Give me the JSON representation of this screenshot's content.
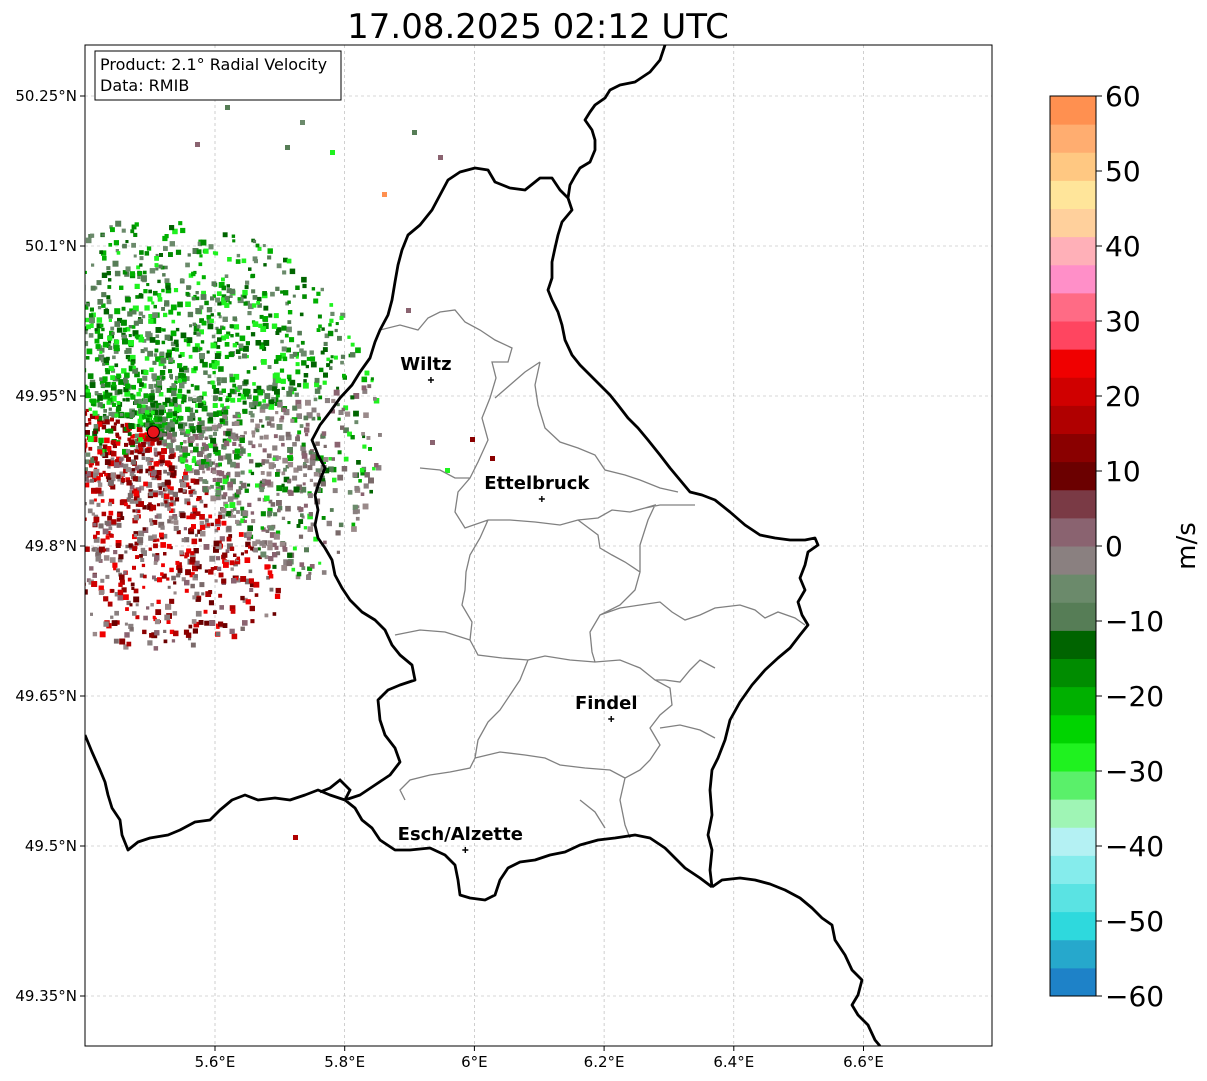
{
  "title": "17.08.2025 02:12 UTC",
  "info_box": {
    "product": "Product: 2.1° Radial Velocity",
    "data": "Data: RMIB"
  },
  "axes": {
    "lat_ticks": [
      "50.25°N",
      "50.1°N",
      "49.95°N",
      "49.8°N",
      "49.65°N",
      "49.5°N",
      "49.35°N"
    ],
    "lon_ticks": [
      "5.6°E",
      "5.8°E",
      "6°E",
      "6.2°E",
      "6.4°E",
      "6.6°E"
    ],
    "lat_range": [
      49.3,
      50.3
    ],
    "lon_range": [
      5.4,
      6.8
    ],
    "grid": true
  },
  "cities": [
    {
      "name": "Wiltz",
      "lat": 49.966,
      "lon": 5.933
    },
    {
      "name": "Ettelbruck",
      "lat": 49.847,
      "lon": 6.104
    },
    {
      "name": "Findel",
      "lat": 49.627,
      "lon": 6.211
    },
    {
      "name": "Esch/Alzette",
      "lat": 49.496,
      "lon": 5.986
    }
  ],
  "radar_site": {
    "lat": 49.914,
    "lon": 5.505,
    "color": "#e8141c"
  },
  "colorbar": {
    "label": "m/s",
    "ticks": [
      "60",
      "50",
      "40",
      "30",
      "20",
      "10",
      "0",
      "−10",
      "−20",
      "−30",
      "−40",
      "−50",
      "−60"
    ],
    "range": [
      -60,
      60
    ],
    "colors": [
      "#1e82c8",
      "#26a8cc",
      "#2ed9dd",
      "#5ae3e3",
      "#85ecec",
      "#b4f1f3",
      "#9ff5b5",
      "#5af06a",
      "#1ff21f",
      "#00d400",
      "#00b000",
      "#008c00",
      "#006400",
      "#567d56",
      "#6b8a6b",
      "#8a8080",
      "#8a6370",
      "#7a3a45",
      "#6b0000",
      "#8a0000",
      "#b00000",
      "#d00000",
      "#f00000",
      "#ff4560",
      "#ff6b85",
      "#ff8fc8",
      "#ffb0b8",
      "#ffd09c",
      "#ffe59a",
      "#ffc882",
      "#ffad70",
      "#ff9050"
    ]
  },
  "colors": {
    "border_country": "#000000",
    "border_canton": "#808080",
    "grid": "#b0b0b0"
  }
}
